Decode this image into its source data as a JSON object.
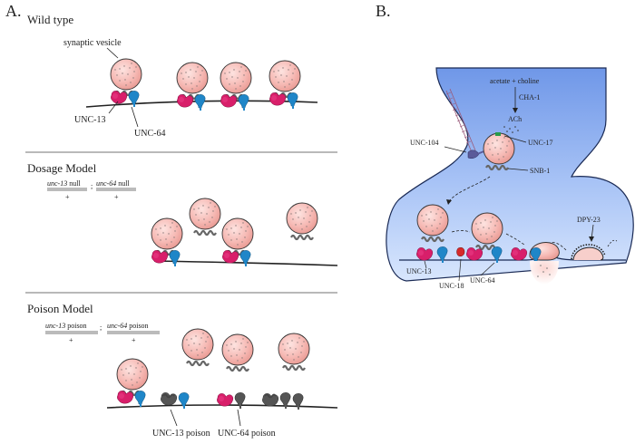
{
  "panels": {
    "a": {
      "letter": "A.",
      "wild_type": {
        "title": "Wild type",
        "vesicle_label": "synaptic vesicle",
        "unc13_label": "UNC-13",
        "unc64_label": "UNC-64"
      },
      "dosage": {
        "title": "Dosage Model",
        "geno_unc13": "unc-13",
        "geno_null1": " null",
        "geno_sep": ";",
        "geno_unc64": "unc-64",
        "geno_null2": " null",
        "plus": "+"
      },
      "poison": {
        "title": "Poison Model",
        "geno_unc13": "unc-13",
        "geno_poison1": " poison",
        "geno_sep": ";",
        "geno_unc64": "unc-64",
        "geno_poison2": " poison",
        "plus": "+",
        "unc13_poison_label": "UNC-13 poison",
        "unc64_poison_label": "UNC-64 poison"
      }
    },
    "b": {
      "letter": "B.",
      "acetate_choline": "acetate + choline",
      "cha1": "CHA-1",
      "ach": "ACh",
      "unc104": "UNC-104",
      "unc17": "UNC-17",
      "snb1": "SNB-1",
      "dpy23": "DPY-23",
      "unc13": "UNC-13",
      "unc18": "UNC-18",
      "unc64": "UNC-64"
    }
  },
  "colors": {
    "vesicle_fill": "#f4b2ae",
    "unc13": "#d81f6a",
    "unc64": "#1f86c8",
    "unc18": "#d62a2a",
    "snb1": "#666666",
    "poison": "#555555",
    "terminal_fill": "#7fa6ec"
  }
}
